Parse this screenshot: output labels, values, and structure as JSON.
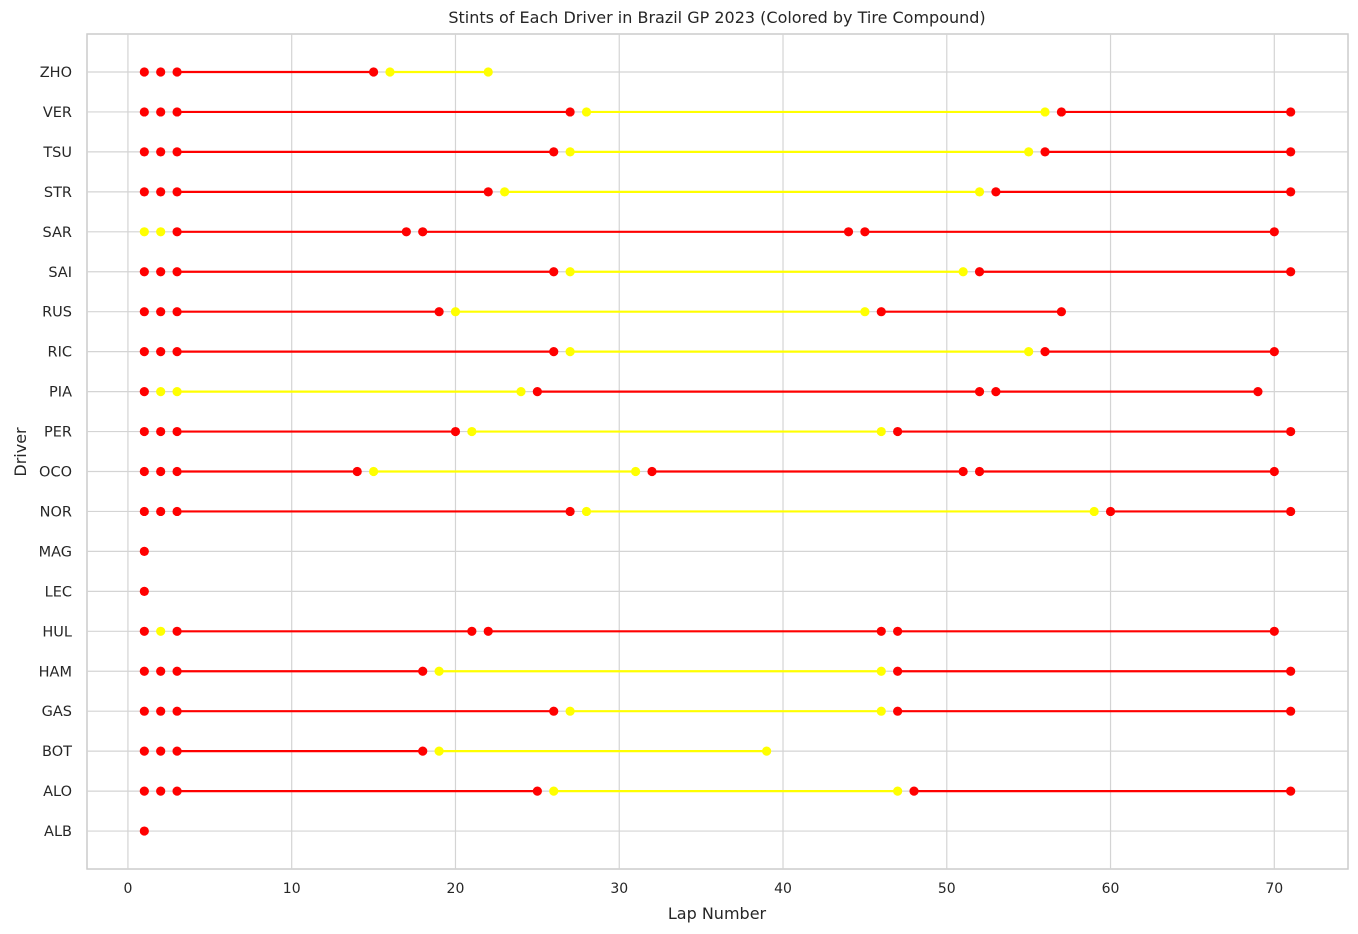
{
  "chart_data": {
    "type": "line",
    "title": "Stints of Each Driver in Brazil GP 2023 (Colored by Tire Compound)",
    "xlabel": "Lap Number",
    "ylabel": "Driver",
    "xlim": [
      -2.5,
      74.5
    ],
    "x_ticks": [
      0,
      10,
      20,
      30,
      40,
      50,
      60,
      70
    ],
    "grid": true,
    "legend": null,
    "compound_colors": {
      "SOFT": "#ff0000",
      "MEDIUM": "#ffff00"
    },
    "categories": [
      "ZHO",
      "VER",
      "TSU",
      "STR",
      "SAR",
      "SAI",
      "RUS",
      "RIC",
      "PIA",
      "PER",
      "OCO",
      "NOR",
      "MAG",
      "LEC",
      "HUL",
      "HAM",
      "GAS",
      "BOT",
      "ALO",
      "ALB"
    ],
    "drivers": [
      {
        "driver": "ZHO",
        "stints": [
          {
            "start": 1,
            "end": 1,
            "color": "#ff0000"
          },
          {
            "start": 2,
            "end": 2,
            "color": "#ff0000"
          },
          {
            "start": 3,
            "end": 15,
            "color": "#ff0000"
          },
          {
            "start": 16,
            "end": 22,
            "color": "#ffff00"
          }
        ]
      },
      {
        "driver": "VER",
        "stints": [
          {
            "start": 1,
            "end": 1,
            "color": "#ff0000"
          },
          {
            "start": 2,
            "end": 2,
            "color": "#ff0000"
          },
          {
            "start": 3,
            "end": 27,
            "color": "#ff0000"
          },
          {
            "start": 28,
            "end": 56,
            "color": "#ffff00"
          },
          {
            "start": 57,
            "end": 71,
            "color": "#ff0000"
          }
        ]
      },
      {
        "driver": "TSU",
        "stints": [
          {
            "start": 1,
            "end": 1,
            "color": "#ff0000"
          },
          {
            "start": 2,
            "end": 2,
            "color": "#ff0000"
          },
          {
            "start": 3,
            "end": 26,
            "color": "#ff0000"
          },
          {
            "start": 27,
            "end": 55,
            "color": "#ffff00"
          },
          {
            "start": 56,
            "end": 71,
            "color": "#ff0000"
          }
        ]
      },
      {
        "driver": "STR",
        "stints": [
          {
            "start": 1,
            "end": 1,
            "color": "#ff0000"
          },
          {
            "start": 2,
            "end": 2,
            "color": "#ff0000"
          },
          {
            "start": 3,
            "end": 22,
            "color": "#ff0000"
          },
          {
            "start": 23,
            "end": 52,
            "color": "#ffff00"
          },
          {
            "start": 53,
            "end": 71,
            "color": "#ff0000"
          }
        ]
      },
      {
        "driver": "SAR",
        "stints": [
          {
            "start": 1,
            "end": 1,
            "color": "#ffff00"
          },
          {
            "start": 2,
            "end": 2,
            "color": "#ffff00"
          },
          {
            "start": 3,
            "end": 17,
            "color": "#ff0000"
          },
          {
            "start": 18,
            "end": 44,
            "color": "#ff0000"
          },
          {
            "start": 45,
            "end": 70,
            "color": "#ff0000"
          }
        ]
      },
      {
        "driver": "SAI",
        "stints": [
          {
            "start": 1,
            "end": 1,
            "color": "#ff0000"
          },
          {
            "start": 2,
            "end": 2,
            "color": "#ff0000"
          },
          {
            "start": 3,
            "end": 26,
            "color": "#ff0000"
          },
          {
            "start": 27,
            "end": 51,
            "color": "#ffff00"
          },
          {
            "start": 52,
            "end": 71,
            "color": "#ff0000"
          }
        ]
      },
      {
        "driver": "RUS",
        "stints": [
          {
            "start": 1,
            "end": 1,
            "color": "#ff0000"
          },
          {
            "start": 2,
            "end": 2,
            "color": "#ff0000"
          },
          {
            "start": 3,
            "end": 19,
            "color": "#ff0000"
          },
          {
            "start": 20,
            "end": 45,
            "color": "#ffff00"
          },
          {
            "start": 46,
            "end": 57,
            "color": "#ff0000"
          }
        ]
      },
      {
        "driver": "RIC",
        "stints": [
          {
            "start": 1,
            "end": 1,
            "color": "#ff0000"
          },
          {
            "start": 2,
            "end": 2,
            "color": "#ff0000"
          },
          {
            "start": 3,
            "end": 26,
            "color": "#ff0000"
          },
          {
            "start": 27,
            "end": 55,
            "color": "#ffff00"
          },
          {
            "start": 56,
            "end": 70,
            "color": "#ff0000"
          }
        ]
      },
      {
        "driver": "PIA",
        "stints": [
          {
            "start": 1,
            "end": 1,
            "color": "#ff0000"
          },
          {
            "start": 2,
            "end": 2,
            "color": "#ffff00"
          },
          {
            "start": 3,
            "end": 24,
            "color": "#ffff00"
          },
          {
            "start": 25,
            "end": 52,
            "color": "#ff0000"
          },
          {
            "start": 53,
            "end": 69,
            "color": "#ff0000"
          }
        ]
      },
      {
        "driver": "PER",
        "stints": [
          {
            "start": 1,
            "end": 1,
            "color": "#ff0000"
          },
          {
            "start": 2,
            "end": 2,
            "color": "#ff0000"
          },
          {
            "start": 3,
            "end": 20,
            "color": "#ff0000"
          },
          {
            "start": 21,
            "end": 46,
            "color": "#ffff00"
          },
          {
            "start": 47,
            "end": 71,
            "color": "#ff0000"
          }
        ]
      },
      {
        "driver": "OCO",
        "stints": [
          {
            "start": 1,
            "end": 1,
            "color": "#ff0000"
          },
          {
            "start": 2,
            "end": 2,
            "color": "#ff0000"
          },
          {
            "start": 3,
            "end": 14,
            "color": "#ff0000"
          },
          {
            "start": 15,
            "end": 31,
            "color": "#ffff00"
          },
          {
            "start": 32,
            "end": 51,
            "color": "#ff0000"
          },
          {
            "start": 52,
            "end": 70,
            "color": "#ff0000"
          }
        ]
      },
      {
        "driver": "NOR",
        "stints": [
          {
            "start": 1,
            "end": 1,
            "color": "#ff0000"
          },
          {
            "start": 2,
            "end": 2,
            "color": "#ff0000"
          },
          {
            "start": 3,
            "end": 27,
            "color": "#ff0000"
          },
          {
            "start": 28,
            "end": 59,
            "color": "#ffff00"
          },
          {
            "start": 60,
            "end": 71,
            "color": "#ff0000"
          }
        ]
      },
      {
        "driver": "MAG",
        "stints": [
          {
            "start": 1,
            "end": 1,
            "color": "#ff0000"
          }
        ]
      },
      {
        "driver": "LEC",
        "stints": [
          {
            "start": 1,
            "end": 1,
            "color": "#ff0000"
          }
        ]
      },
      {
        "driver": "HUL",
        "stints": [
          {
            "start": 1,
            "end": 1,
            "color": "#ff0000"
          },
          {
            "start": 2,
            "end": 2,
            "color": "#ffff00"
          },
          {
            "start": 3,
            "end": 21,
            "color": "#ff0000"
          },
          {
            "start": 22,
            "end": 46,
            "color": "#ff0000"
          },
          {
            "start": 47,
            "end": 70,
            "color": "#ff0000"
          }
        ]
      },
      {
        "driver": "HAM",
        "stints": [
          {
            "start": 1,
            "end": 1,
            "color": "#ff0000"
          },
          {
            "start": 2,
            "end": 2,
            "color": "#ff0000"
          },
          {
            "start": 3,
            "end": 18,
            "color": "#ff0000"
          },
          {
            "start": 19,
            "end": 46,
            "color": "#ffff00"
          },
          {
            "start": 47,
            "end": 71,
            "color": "#ff0000"
          }
        ]
      },
      {
        "driver": "GAS",
        "stints": [
          {
            "start": 1,
            "end": 1,
            "color": "#ff0000"
          },
          {
            "start": 2,
            "end": 2,
            "color": "#ff0000"
          },
          {
            "start": 3,
            "end": 26,
            "color": "#ff0000"
          },
          {
            "start": 27,
            "end": 46,
            "color": "#ffff00"
          },
          {
            "start": 47,
            "end": 71,
            "color": "#ff0000"
          }
        ]
      },
      {
        "driver": "BOT",
        "stints": [
          {
            "start": 1,
            "end": 1,
            "color": "#ff0000"
          },
          {
            "start": 2,
            "end": 2,
            "color": "#ff0000"
          },
          {
            "start": 3,
            "end": 18,
            "color": "#ff0000"
          },
          {
            "start": 19,
            "end": 39,
            "color": "#ffff00"
          }
        ]
      },
      {
        "driver": "ALO",
        "stints": [
          {
            "start": 1,
            "end": 1,
            "color": "#ff0000"
          },
          {
            "start": 2,
            "end": 2,
            "color": "#ff0000"
          },
          {
            "start": 3,
            "end": 25,
            "color": "#ff0000"
          },
          {
            "start": 26,
            "end": 47,
            "color": "#ffff00"
          },
          {
            "start": 48,
            "end": 71,
            "color": "#ff0000"
          }
        ]
      },
      {
        "driver": "ALB",
        "stints": [
          {
            "start": 1,
            "end": 1,
            "color": "#ff0000"
          }
        ]
      }
    ]
  }
}
